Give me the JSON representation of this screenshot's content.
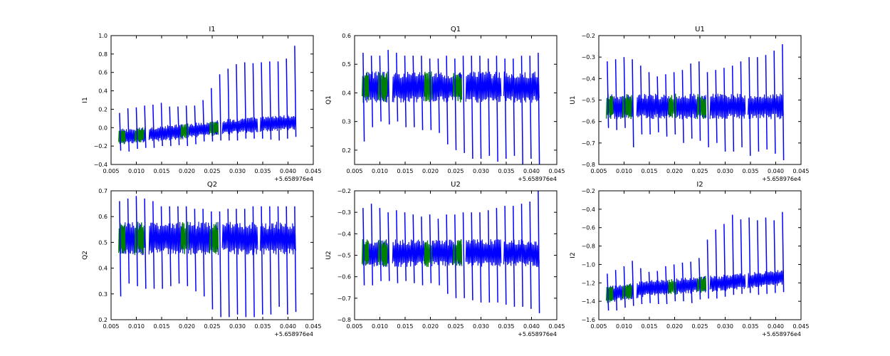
{
  "figure": {
    "offset_label": "+5.658976e4",
    "x_tick_labels": [
      "0.005",
      "0.010",
      "0.015",
      "0.020",
      "0.025",
      "0.030",
      "0.035",
      "0.040",
      "0.045"
    ],
    "colors": {
      "primary": "#0000ff",
      "secondary": "#008000"
    }
  },
  "chart_data": [
    {
      "type": "line",
      "title": "I1",
      "ylabel": "I1",
      "xlim": [
        0.005,
        0.045
      ],
      "ylim": [
        -0.4,
        1.0
      ],
      "y_ticks": [
        "−0.4",
        "−0.2",
        "0.0",
        "0.2",
        "0.4",
        "0.6",
        "0.8",
        "1.0"
      ],
      "band_centre": [
        [
          0.0065,
          -0.1
        ],
        [
          0.02,
          -0.04
        ],
        [
          0.026,
          0.0
        ],
        [
          0.033,
          0.03
        ],
        [
          0.0415,
          0.06
        ]
      ],
      "band_half_width": 0.085,
      "spikes_high": [
        0.16,
        0.21,
        0.22,
        0.24,
        0.25,
        0.27,
        0.23,
        0.23,
        0.24,
        0.24,
        0.3,
        0.43,
        0.58,
        0.64,
        0.69,
        0.71,
        0.7,
        0.71,
        0.72,
        0.72,
        0.75,
        0.89
      ],
      "spikes_low": [
        -0.25,
        -0.26,
        -0.23,
        -0.22,
        -0.22,
        -0.2,
        -0.2,
        -0.19,
        -0.2,
        -0.18,
        -0.15,
        -0.15,
        -0.14,
        -0.14,
        -0.14,
        -0.12,
        -0.12,
        -0.12,
        -0.13,
        -0.14,
        -0.12,
        -0.1
      ],
      "series": [
        {
          "segments": [
            [
              0.0072,
              0.0097
            ],
            [
              0.0105,
              0.0118
            ],
            [
              0.0125,
              0.0192
            ],
            [
              0.0203,
              0.0245
            ],
            [
              0.0255,
              0.0262
            ],
            [
              0.027,
              0.034
            ],
            [
              0.0345,
              0.0415
            ]
          ]
        },
        {
          "segments": [
            [
              0.0065,
              0.0078
            ],
            [
              0.0097,
              0.0115
            ],
            [
              0.0188,
              0.0203
            ],
            [
              0.0245,
              0.0262
            ]
          ]
        }
      ]
    },
    {
      "type": "line",
      "title": "Q1",
      "ylabel": "Q1",
      "xlim": [
        0.005,
        0.045
      ],
      "ylim": [
        0.15,
        0.6
      ],
      "y_ticks": [
        "0.2",
        "0.3",
        "0.4",
        "0.5",
        "0.6"
      ],
      "band_centre": [
        [
          0.0065,
          0.42
        ],
        [
          0.0415,
          0.42
        ]
      ],
      "band_half_width": 0.055,
      "spikes_high": [
        0.54,
        0.53,
        0.53,
        0.55,
        0.54,
        0.53,
        0.53,
        0.53,
        0.52,
        0.52,
        0.53,
        0.52,
        0.53,
        0.53,
        0.53,
        0.52,
        0.53,
        0.52,
        0.52,
        0.53,
        0.53,
        0.54
      ],
      "spikes_low": [
        0.23,
        0.28,
        0.3,
        0.29,
        0.3,
        0.28,
        0.28,
        0.27,
        0.27,
        0.26,
        0.22,
        0.2,
        0.19,
        0.17,
        0.17,
        0.18,
        0.16,
        0.17,
        0.18,
        0.15,
        0.17,
        0.15
      ],
      "series": [
        {
          "segments": [
            [
              0.0072,
              0.0097
            ],
            [
              0.0105,
              0.0118
            ],
            [
              0.0125,
              0.0192
            ],
            [
              0.0203,
              0.0245
            ],
            [
              0.0255,
              0.0262
            ],
            [
              0.027,
              0.034
            ],
            [
              0.0345,
              0.0415
            ]
          ]
        },
        {
          "segments": [
            [
              0.0065,
              0.0078
            ],
            [
              0.0097,
              0.0115
            ],
            [
              0.0188,
              0.0203
            ],
            [
              0.0245,
              0.0262
            ]
          ]
        }
      ]
    },
    {
      "type": "line",
      "title": "U1",
      "ylabel": "U1",
      "xlim": [
        0.005,
        0.045
      ],
      "ylim": [
        -0.8,
        -0.2
      ],
      "y_ticks": [
        "−0.8",
        "−0.7",
        "−0.6",
        "−0.5",
        "−0.4",
        "−0.3",
        "−0.2"
      ],
      "band_centre": [
        [
          0.0065,
          -0.53
        ],
        [
          0.0415,
          -0.53
        ]
      ],
      "band_half_width": 0.06,
      "spikes_high": [
        -0.32,
        -0.31,
        -0.3,
        -0.31,
        -0.34,
        -0.37,
        -0.39,
        -0.38,
        -0.37,
        -0.36,
        -0.33,
        -0.32,
        -0.37,
        -0.36,
        -0.35,
        -0.34,
        -0.32,
        -0.3,
        -0.3,
        -0.29,
        -0.27,
        -0.24
      ],
      "spikes_low": [
        -0.63,
        -0.64,
        -0.63,
        -0.72,
        -0.66,
        -0.66,
        -0.65,
        -0.67,
        -0.66,
        -0.7,
        -0.68,
        -0.69,
        -0.72,
        -0.7,
        -0.74,
        -0.74,
        -0.72,
        -0.76,
        -0.74,
        -0.73,
        -0.75,
        -0.78
      ],
      "series": [
        {
          "segments": [
            [
              0.0072,
              0.0097
            ],
            [
              0.0105,
              0.0118
            ],
            [
              0.0125,
              0.0192
            ],
            [
              0.0203,
              0.0245
            ],
            [
              0.0255,
              0.0262
            ],
            [
              0.027,
              0.034
            ],
            [
              0.0345,
              0.0415
            ]
          ]
        },
        {
          "segments": [
            [
              0.0065,
              0.0078
            ],
            [
              0.0097,
              0.0115
            ],
            [
              0.0188,
              0.0203
            ],
            [
              0.0245,
              0.0262
            ]
          ]
        }
      ]
    },
    {
      "type": "line",
      "title": "Q2",
      "ylabel": "Q2",
      "xlim": [
        0.005,
        0.045
      ],
      "ylim": [
        0.2,
        0.7
      ],
      "y_ticks": [
        "0.2",
        "0.3",
        "0.4",
        "0.5",
        "0.6",
        "0.7"
      ],
      "band_centre": [
        [
          0.0065,
          0.515
        ],
        [
          0.0415,
          0.515
        ]
      ],
      "band_half_width": 0.065,
      "spikes_high": [
        0.66,
        0.67,
        0.68,
        0.67,
        0.66,
        0.64,
        0.64,
        0.64,
        0.64,
        0.63,
        0.63,
        0.62,
        0.62,
        0.63,
        0.63,
        0.63,
        0.64,
        0.64,
        0.64,
        0.64,
        0.64,
        0.64
      ],
      "spikes_low": [
        0.29,
        0.34,
        0.33,
        0.32,
        0.32,
        0.32,
        0.33,
        0.34,
        0.33,
        0.31,
        0.29,
        0.24,
        0.21,
        0.21,
        0.22,
        0.21,
        0.21,
        0.22,
        0.22,
        0.25,
        0.22,
        0.23
      ],
      "series": [
        {
          "segments": [
            [
              0.0072,
              0.0097
            ],
            [
              0.0105,
              0.0118
            ],
            [
              0.0125,
              0.0192
            ],
            [
              0.0203,
              0.0245
            ],
            [
              0.0255,
              0.0262
            ],
            [
              0.027,
              0.034
            ],
            [
              0.0345,
              0.0415
            ]
          ]
        },
        {
          "segments": [
            [
              0.0065,
              0.0078
            ],
            [
              0.0097,
              0.0115
            ],
            [
              0.0188,
              0.0203
            ],
            [
              0.0245,
              0.0262
            ]
          ]
        }
      ]
    },
    {
      "type": "line",
      "title": "U2",
      "ylabel": "U2",
      "xlim": [
        0.005,
        0.045
      ],
      "ylim": [
        -0.8,
        -0.2
      ],
      "y_ticks": [
        "−0.8",
        "−0.7",
        "−0.6",
        "−0.5",
        "−0.4",
        "−0.3",
        "−0.2"
      ],
      "band_centre": [
        [
          0.0065,
          -0.49
        ],
        [
          0.0415,
          -0.49
        ]
      ],
      "band_half_width": 0.065,
      "spikes_high": [
        -0.28,
        -0.26,
        -0.28,
        -0.3,
        -0.29,
        -0.3,
        -0.31,
        -0.32,
        -0.31,
        -0.33,
        -0.31,
        -0.31,
        -0.3,
        -0.3,
        -0.3,
        -0.29,
        -0.28,
        -0.27,
        -0.27,
        -0.26,
        -0.25,
        -0.2
      ],
      "spikes_low": [
        -0.64,
        -0.64,
        -0.62,
        -0.62,
        -0.63,
        -0.62,
        -0.63,
        -0.64,
        -0.63,
        -0.64,
        -0.68,
        -0.7,
        -0.7,
        -0.71,
        -0.72,
        -0.72,
        -0.72,
        -0.73,
        -0.74,
        -0.74,
        -0.75,
        -0.77
      ],
      "series": [
        {
          "segments": [
            [
              0.0072,
              0.0097
            ],
            [
              0.0105,
              0.0118
            ],
            [
              0.0125,
              0.0192
            ],
            [
              0.0203,
              0.0245
            ],
            [
              0.0255,
              0.0262
            ],
            [
              0.027,
              0.034
            ],
            [
              0.0345,
              0.0415
            ]
          ]
        },
        {
          "segments": [
            [
              0.0065,
              0.0078
            ],
            [
              0.0097,
              0.0115
            ],
            [
              0.0188,
              0.0203
            ],
            [
              0.0245,
              0.0262
            ]
          ]
        }
      ]
    },
    {
      "type": "line",
      "title": "I2",
      "ylabel": "I2",
      "xlim": [
        0.005,
        0.045
      ],
      "ylim": [
        -1.6,
        -0.2
      ],
      "y_ticks": [
        "−1.6",
        "−1.4",
        "−1.2",
        "−1.0",
        "−0.8",
        "−0.6",
        "−0.4",
        "−0.2"
      ],
      "band_centre": [
        [
          0.0065,
          -1.33
        ],
        [
          0.015,
          -1.26
        ],
        [
          0.03,
          -1.2
        ],
        [
          0.0415,
          -1.14
        ]
      ],
      "band_half_width": 0.09,
      "spikes_high": [
        -1.1,
        -1.06,
        -1.02,
        -0.96,
        -1.04,
        -1.08,
        -1.07,
        -1.02,
        -1.0,
        -0.98,
        -0.97,
        -0.93,
        -0.73,
        -0.62,
        -0.56,
        -0.46,
        -0.51,
        -0.49,
        -0.52,
        -0.49,
        -0.52,
        -0.43
      ],
      "spikes_low": [
        -1.5,
        -1.5,
        -1.47,
        -1.45,
        -1.43,
        -1.42,
        -1.43,
        -1.43,
        -1.4,
        -1.4,
        -1.42,
        -1.38,
        -1.37,
        -1.37,
        -1.35,
        -1.33,
        -1.32,
        -1.31,
        -1.33,
        -1.32,
        -1.31,
        -1.3
      ],
      "series": [
        {
          "segments": [
            [
              0.0072,
              0.0097
            ],
            [
              0.0105,
              0.0118
            ],
            [
              0.0125,
              0.0192
            ],
            [
              0.0203,
              0.0245
            ],
            [
              0.0255,
              0.0262
            ],
            [
              0.027,
              0.034
            ],
            [
              0.0345,
              0.0415
            ]
          ]
        },
        {
          "segments": [
            [
              0.0065,
              0.0078
            ],
            [
              0.0097,
              0.0115
            ],
            [
              0.0188,
              0.0203
            ],
            [
              0.0245,
              0.0262
            ]
          ]
        }
      ]
    }
  ]
}
